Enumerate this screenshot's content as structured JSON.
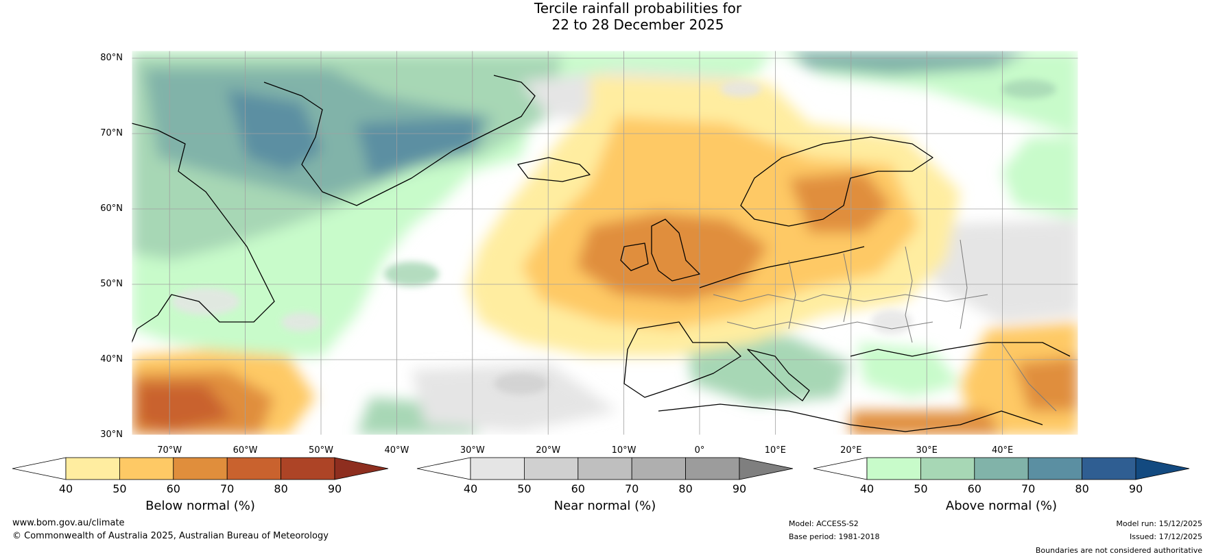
{
  "title": {
    "line1": "Tercile rainfall probabilities for",
    "line2": "22 to 28 December 2025"
  },
  "map": {
    "lat_labels": [
      "80°N",
      "70°N",
      "60°N",
      "50°N",
      "40°N",
      "30°N"
    ],
    "lon_labels": [
      "70°W",
      "60°W",
      "50°W",
      "40°W",
      "30°W",
      "20°W",
      "10°W",
      "0°",
      "10°E",
      "20°E",
      "30°E",
      "40°E"
    ],
    "extent": {
      "lon_min": -75,
      "lon_max": 50,
      "lat_min": 30,
      "lat_max": 81
    },
    "graticule": true,
    "colors": {
      "land_outline": "#000000",
      "borders": "#7a7a7a",
      "grid": "#a0a0a0"
    }
  },
  "colorbars": [
    {
      "title": "Below normal (%)",
      "ticks": [
        "40",
        "50",
        "60",
        "70",
        "80",
        "90"
      ],
      "colors": [
        "#ffffff",
        "#ffeda0",
        "#fec965",
        "#e08e3c",
        "#c9622e",
        "#ad4426",
        "#8e2e1f"
      ]
    },
    {
      "title": "Near normal (%)",
      "ticks": [
        "40",
        "50",
        "60",
        "70",
        "80",
        "90"
      ],
      "colors": [
        "#ffffff",
        "#e5e5e5",
        "#d0d0d0",
        "#bfbfbf",
        "#afafaf",
        "#9c9c9c",
        "#7f7f7f"
      ]
    },
    {
      "title": "Above normal (%)",
      "ticks": [
        "40",
        "50",
        "60",
        "70",
        "80",
        "90"
      ],
      "colors": [
        "#ffffff",
        "#c8fbca",
        "#a7d7b5",
        "#81b3a9",
        "#5b8fa2",
        "#2f5e92",
        "#134a80"
      ]
    }
  ],
  "footer": {
    "website": "www.bom.gov.au/climate",
    "copyright": "© Commonwealth of Australia 2025, Australian Bureau of Meteorology",
    "model": "Model: ACCESS-S2",
    "base_period": "Base period: 1981-2018",
    "model_run": "Model run: 15/12/2025",
    "issued": "Issued: 17/12/2025",
    "disclaimer": "Boundaries are not considered authoritative"
  }
}
